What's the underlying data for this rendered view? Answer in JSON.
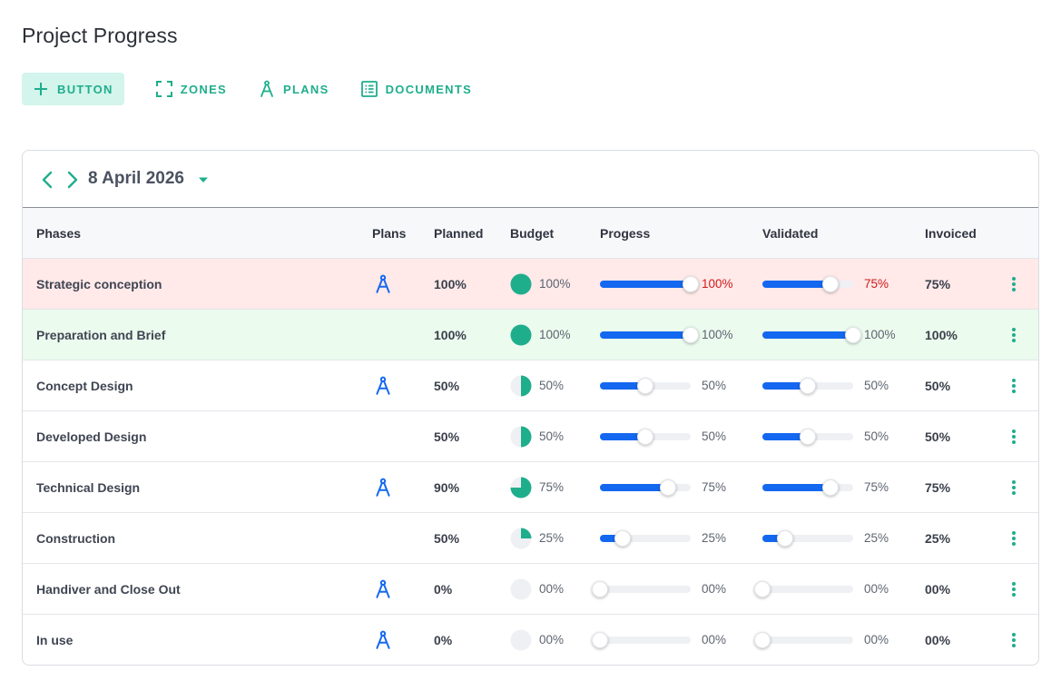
{
  "page": {
    "title": "Project Progress"
  },
  "toolbar": {
    "button_label": "BUTTON",
    "zones_label": "ZONES",
    "plans_label": "PLANS",
    "documents_label": "DOCUMENTS"
  },
  "date_nav": {
    "date": "8 April 2026"
  },
  "columns": {
    "phases": "Phases",
    "plans": "Plans",
    "planned": "Planned",
    "budget": "Budget",
    "progress": "Progess",
    "validated": "Validated",
    "invoiced": "Invoiced"
  },
  "colors": {
    "accent": "#1fae8c",
    "slider_fill": "#1468f0",
    "plan_icon": "#1468f0",
    "alert_text": "#d21a1a",
    "row_alert_bg": "#ffe9e9",
    "row_ok_bg": "#ebfbee"
  },
  "rows": [
    {
      "phase": "Strategic conception",
      "has_plan": true,
      "planned": "100%",
      "budget": 1.0,
      "budget_text": "100%",
      "progress": 1.0,
      "progress_text": "100%",
      "validated": 0.75,
      "validated_text": "75%",
      "invoiced": "75%",
      "state": "alert"
    },
    {
      "phase": "Preparation and Brief",
      "has_plan": false,
      "planned": "100%",
      "budget": 1.0,
      "budget_text": "100%",
      "progress": 1.0,
      "progress_text": "100%",
      "validated": 1.0,
      "validated_text": "100%",
      "invoiced": "100%",
      "state": "ok"
    },
    {
      "phase": "Concept Design",
      "has_plan": true,
      "planned": "50%",
      "budget": 0.5,
      "budget_text": "50%",
      "progress": 0.5,
      "progress_text": "50%",
      "validated": 0.5,
      "validated_text": "50%",
      "invoiced": "50%",
      "state": ""
    },
    {
      "phase": "Developed Design",
      "has_plan": false,
      "planned": "50%",
      "budget": 0.5,
      "budget_text": "50%",
      "progress": 0.5,
      "progress_text": "50%",
      "validated": 0.5,
      "validated_text": "50%",
      "invoiced": "50%",
      "state": ""
    },
    {
      "phase": "Technical Design",
      "has_plan": true,
      "planned": "90%",
      "budget": 0.75,
      "budget_text": "75%",
      "progress": 0.75,
      "progress_text": "75%",
      "validated": 0.75,
      "validated_text": "75%",
      "invoiced": "75%",
      "state": ""
    },
    {
      "phase": "Construction",
      "has_plan": false,
      "planned": "50%",
      "budget": 0.25,
      "budget_text": "25%",
      "progress": 0.25,
      "progress_text": "25%",
      "validated": 0.25,
      "validated_text": "25%",
      "invoiced": "25%",
      "state": ""
    },
    {
      "phase": "Handiver and Close Out",
      "has_plan": true,
      "planned": "0%",
      "budget": 0,
      "budget_text": "00%",
      "progress": 0,
      "progress_text": "00%",
      "validated": 0,
      "validated_text": "00%",
      "invoiced": "00%",
      "state": ""
    },
    {
      "phase": "In use",
      "has_plan": true,
      "planned": "0%",
      "budget": 0,
      "budget_text": "00%",
      "progress": 0,
      "progress_text": "00%",
      "validated": 0,
      "validated_text": "00%",
      "invoiced": "00%",
      "state": ""
    }
  ]
}
